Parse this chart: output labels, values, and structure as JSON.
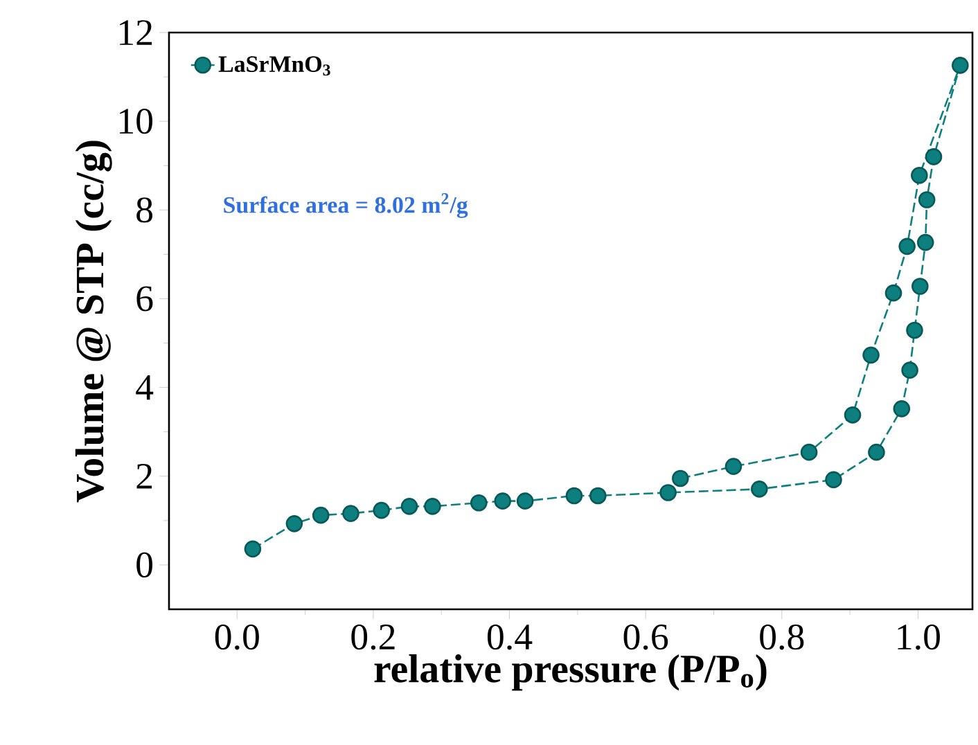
{
  "chart_data": {
    "type": "line",
    "xlabel": "relative pressure (P/P$_{o}$)",
    "ylabel": "Volume @ STP (cc/g)",
    "annotations": [
      "Surface area = 8.02 m$^{2}$/g"
    ],
    "series": [
      {
        "name": "LaSrMnO$_{3}$",
        "color": "#0e7f7f",
        "x": [
          0.023,
          0.084,
          0.123,
          0.167,
          0.212,
          0.253,
          0.287,
          0.355,
          0.39,
          0.423,
          0.495,
          0.53,
          0.633,
          0.767,
          0.876,
          0.939,
          0.976,
          0.988,
          0.995,
          1.003,
          1.011,
          1.013,
          1.023,
          1.062,
          1.002,
          0.984,
          0.964,
          0.931,
          0.904,
          0.84,
          0.729,
          0.651
        ],
        "values": [
          0.36,
          0.93,
          1.12,
          1.16,
          1.23,
          1.32,
          1.32,
          1.4,
          1.44,
          1.44,
          1.56,
          1.56,
          1.63,
          1.71,
          1.92,
          2.54,
          3.52,
          4.39,
          5.29,
          6.28,
          7.27,
          8.23,
          9.2,
          11.26,
          8.78,
          7.18,
          6.13,
          4.73,
          3.38,
          2.54,
          2.22,
          1.95
        ]
      }
    ],
    "xlim": [
      -0.1,
      1.08
    ],
    "ylim": [
      -1,
      12
    ],
    "xticks": [
      {
        "value": 0,
        "label": "0.0"
      },
      {
        "value": 0.2,
        "label": "0.2"
      },
      {
        "value": 0.4,
        "label": "0.4"
      },
      {
        "value": 0.6,
        "label": "0.6"
      },
      {
        "value": 0.8,
        "label": "0.8"
      },
      {
        "value": 1.0,
        "label": "1.0"
      }
    ],
    "yticks": [
      0,
      2,
      4,
      6,
      8,
      10,
      12
    ],
    "legend": "top left",
    "marker": "circle",
    "line_style": "dashed",
    "grid": false
  }
}
